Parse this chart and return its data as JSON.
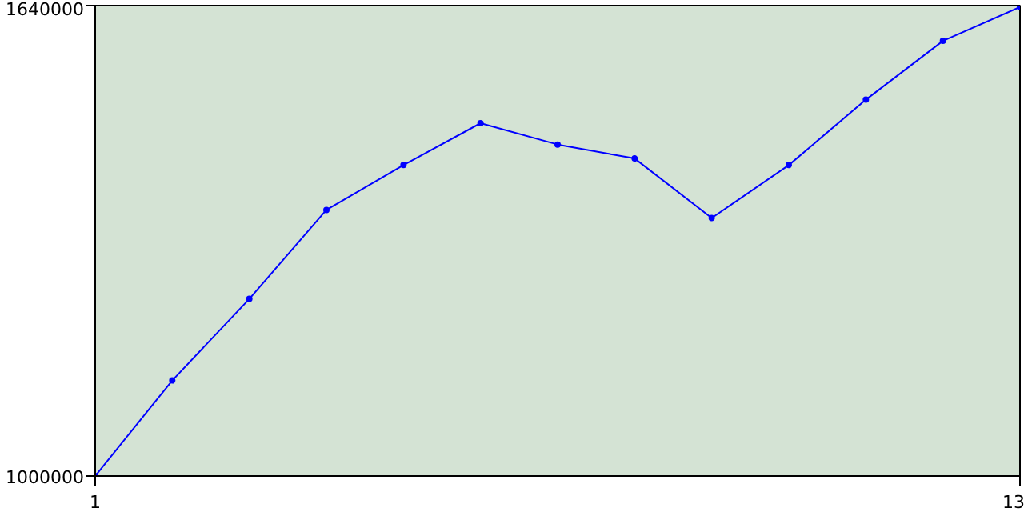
{
  "chart_data": {
    "type": "line",
    "x": [
      1,
      2,
      3,
      4,
      5,
      6,
      7,
      8,
      9,
      10,
      11,
      12,
      13
    ],
    "series": [
      {
        "color": "#0000ff",
        "values": [
          1000000,
          1130000,
          1241000,
          1362000,
          1423000,
          1480000,
          1451000,
          1432000,
          1351000,
          1423000,
          1512000,
          1592000,
          1638000
        ]
      }
    ],
    "xlim": [
      1,
      13
    ],
    "ylim": [
      1000000,
      1640000
    ],
    "xticks": [
      1,
      13
    ],
    "yticks": [
      1000000,
      1640000
    ],
    "marker": "circle",
    "line_style": "solid"
  }
}
